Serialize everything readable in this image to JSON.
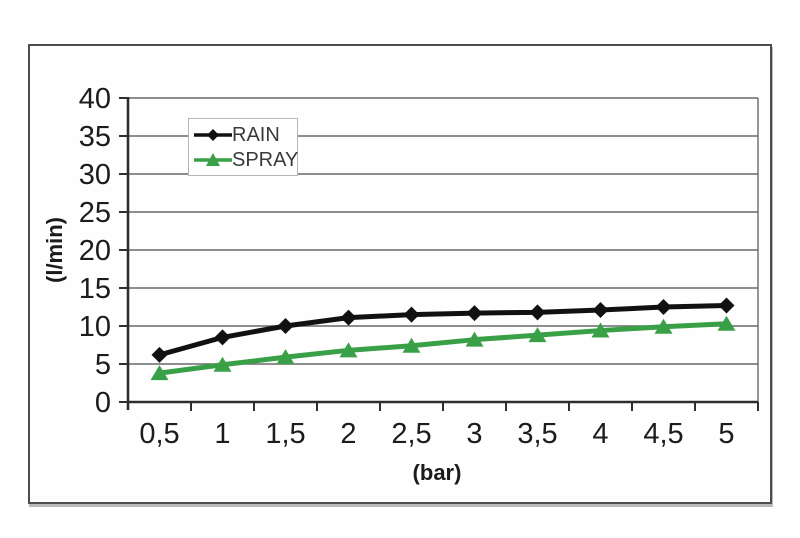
{
  "chart_data": {
    "type": "line",
    "title": "",
    "xlabel": "(bar)",
    "ylabel": "(l/min)",
    "x": [
      0.5,
      1,
      1.5,
      2,
      2.5,
      3,
      3.5,
      4,
      4.5,
      5
    ],
    "categories": [
      "0,5",
      "1",
      "1,5",
      "2",
      "2,5",
      "3",
      "3,5",
      "4",
      "4,5",
      "5"
    ],
    "ylim": [
      0,
      40
    ],
    "ytick_step": 5,
    "grid": "horizontal",
    "legend_position": "top-left-inside",
    "series": [
      {
        "name": "RAIN",
        "color": "#111111",
        "marker": "diamond",
        "values": [
          6.2,
          8.5,
          10.0,
          11.1,
          11.5,
          11.7,
          11.8,
          12.1,
          12.5,
          12.7
        ]
      },
      {
        "name": "SPRAY",
        "color": "#3aa047",
        "marker": "triangle",
        "values": [
          3.8,
          4.9,
          5.9,
          6.8,
          7.4,
          8.2,
          8.8,
          9.4,
          9.9,
          10.3
        ]
      }
    ]
  },
  "colors": {
    "frame_border": "#4d4d4d",
    "gridline": "#696969",
    "axis": "#2e2e2e",
    "tick_label": "#1c1c1c",
    "legend_border": "#b5b5b5",
    "background": "#ffffff"
  }
}
